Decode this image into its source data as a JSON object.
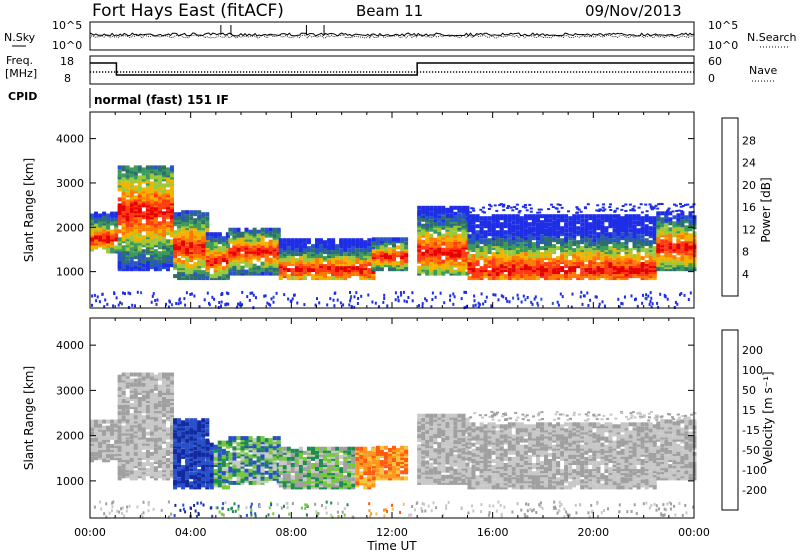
{
  "header": {
    "station": "Fort Hays East (fitACF)",
    "beam": "Beam 11",
    "date": "09/Nov/2013"
  },
  "top_panels": {
    "nsky_label": "N.Sky",
    "nsearch_label": "N.Search",
    "noise_ticks": [
      "10^5",
      "10^0"
    ],
    "freq_label_1": "Freq.",
    "freq_label_2": "[MHz]",
    "freq_ticks": [
      "18",
      "8"
    ],
    "nave_label": "Nave",
    "nave_ticks": [
      "60",
      "0"
    ],
    "cpid_label": "CPID",
    "cpid_value": "normal (fast) 151 IF"
  },
  "colors": {
    "power": [
      "#1e2de6",
      "#2a55c8",
      "#2e6e6e",
      "#3c9a5a",
      "#9ec83c",
      "#f0b400",
      "#ff7a00",
      "#ff3c14",
      "#e60000"
    ],
    "velocity": [
      "#e60000",
      "#ff5a14",
      "#ff9620",
      "#f0c840",
      "#c8c8c8",
      "#a0a0a0",
      "#78c83c",
      "#1e8c50",
      "#2850c8",
      "#1428a0"
    ]
  },
  "chart_data": [
    {
      "type": "heatmap",
      "name": "Power",
      "xlabel": "",
      "ylabel": "Slant Range [km]",
      "x_ticks": [
        "00:00",
        "04:00",
        "08:00",
        "12:00",
        "16:00",
        "20:00",
        "00:00"
      ],
      "xlim_hours": [
        0,
        24
      ],
      "ylim_km": [
        180,
        4600
      ],
      "y_ticks": [
        1000,
        2000,
        3000,
        4000
      ],
      "colorbar_label": "Power [dB]",
      "colorbar_ticks": [
        4,
        8,
        12,
        16,
        20,
        24,
        28
      ],
      "colorbar_range": [
        0,
        32
      ]
    },
    {
      "type": "heatmap",
      "name": "Velocity",
      "xlabel": "Time UT",
      "ylabel": "Slant Range [km]",
      "x_ticks": [
        "00:00",
        "04:00",
        "08:00",
        "12:00",
        "16:00",
        "20:00",
        "00:00"
      ],
      "xlim_hours": [
        0,
        24
      ],
      "ylim_km": [
        180,
        4600
      ],
      "y_ticks": [
        1000,
        2000,
        3000,
        4000
      ],
      "colorbar_label": "Velocity [m s⁻¹]",
      "colorbar_ticks": [
        "200",
        "100",
        "50",
        "15",
        "-15",
        "-50",
        "-100",
        "-200"
      ]
    }
  ]
}
